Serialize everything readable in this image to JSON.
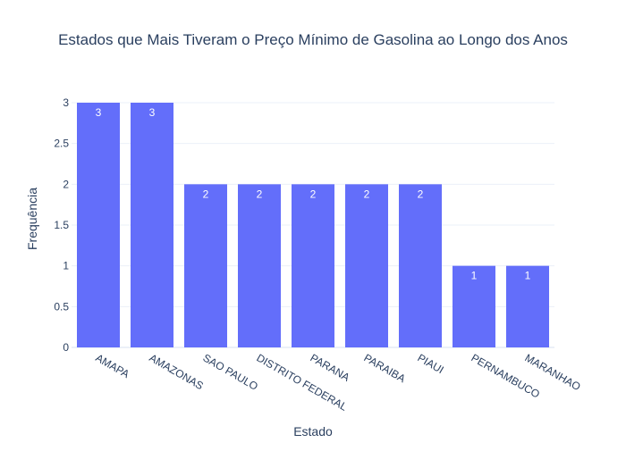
{
  "chart_data": {
    "type": "bar",
    "title": "Estados que Mais Tiveram o Preço Mínimo de Gasolina ao Longo dos Anos",
    "xlabel": "Estado",
    "ylabel": "Frequência",
    "categories": [
      "AMAPA",
      "AMAZONAS",
      "SAO PAULO",
      "DISTRITO FEDERAL",
      "PARANA",
      "PARAIBA",
      "PIAUI",
      "PERNAMBUCO",
      "MARANHAO"
    ],
    "values": [
      3,
      3,
      2,
      2,
      2,
      2,
      2,
      1,
      1
    ],
    "data_labels": [
      "3",
      "3",
      "2",
      "2",
      "2",
      "2",
      "2",
      "1",
      "1"
    ],
    "ylim": [
      0,
      3
    ],
    "yticks": [
      0,
      0.5,
      1,
      1.5,
      2,
      2.5,
      3
    ],
    "ytick_labels": [
      "0",
      "0.5",
      "1",
      "1.5",
      "2",
      "2.5",
      "3"
    ],
    "grid": true,
    "bar_color": "#636efa",
    "text_color": "#2a3f5f",
    "grid_color": "#ebf0f8"
  }
}
